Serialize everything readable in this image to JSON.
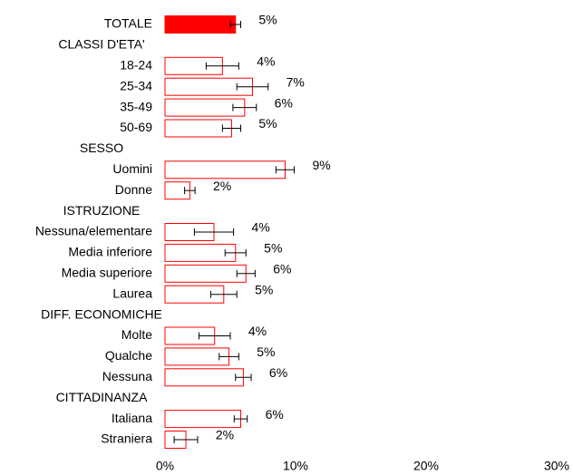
{
  "chart_data": {
    "type": "hbar-error",
    "categories": [
      "TOTALE",
      "CLASSI D'ETA'",
      "18-24",
      "25-34",
      "35-49",
      "50-69",
      "SESSO",
      "Uomini",
      "Donne",
      "ISTRUZIONE",
      "Nessuna/elementare",
      "Media inferiore",
      "Media superiore",
      "Laurea",
      "DIFF. ECONOMICHE",
      "Molte",
      "Qualche",
      "Nessuna",
      "CITTADINANZA",
      "Italiana",
      "Straniera"
    ],
    "values": [
      5.4,
      null,
      4.4,
      6.7,
      6.1,
      5.1,
      null,
      9.2,
      1.9,
      null,
      3.75,
      5.4,
      6.2,
      4.5,
      null,
      3.8,
      4.9,
      6.0,
      null,
      5.8,
      1.6
    ],
    "value_labels": [
      "5%",
      null,
      "4%",
      "7%",
      "6%",
      "5%",
      null,
      "9%",
      "2%",
      null,
      "4%",
      "5%",
      "6%",
      "5%",
      null,
      "4%",
      "5%",
      "6%",
      null,
      "6%",
      "2%"
    ],
    "errors": [
      0.4,
      null,
      1.25,
      1.2,
      0.9,
      0.7,
      null,
      0.7,
      0.4,
      null,
      1.5,
      0.8,
      0.7,
      1.0,
      null,
      1.2,
      0.75,
      0.6,
      null,
      0.5,
      0.9
    ],
    "fills": [
      "#ff0000",
      null,
      "#ffffff",
      "#ffffff",
      "#ffffff",
      "#ffffff",
      null,
      "#ffffff",
      "#ffffff",
      null,
      "#ffffff",
      "#ffffff",
      "#ffffff",
      "#ffffff",
      null,
      "#ffffff",
      "#ffffff",
      "#ffffff",
      null,
      "#ffffff",
      "#ffffff"
    ],
    "color": "#ff0000",
    "xlim": [
      0,
      30
    ],
    "xticks": [
      {
        "value": 0,
        "label": "0%"
      },
      {
        "value": 10,
        "label": "10%"
      },
      {
        "value": 20,
        "label": "20%"
      },
      {
        "value": 30,
        "label": "30%"
      }
    ]
  }
}
